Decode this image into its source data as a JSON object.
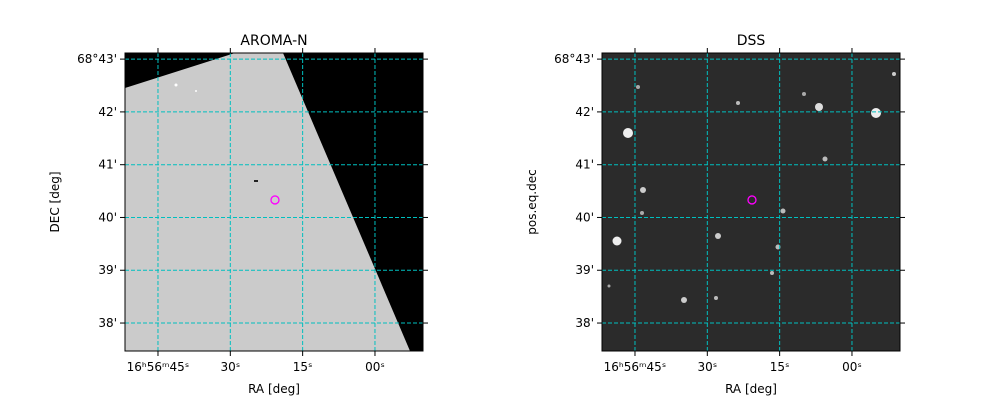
{
  "chart_data": [
    {
      "type": "image",
      "title": "AROMA-N",
      "xlabel": "RA [deg]",
      "ylabel": "DEC [deg]",
      "xlim": [
        254.216,
        253.9585
      ],
      "ylim": [
        68.6245,
        68.7186
      ],
      "xticks": [
        {
          "value": 254.1875,
          "label": "16ʰ56ᵐ45ˢ"
        },
        {
          "value": 254.125,
          "label": "30ˢ"
        },
        {
          "value": 254.0625,
          "label": "15ˢ"
        },
        {
          "value": 254.0,
          "label": "00ˢ"
        }
      ],
      "yticks": [
        {
          "value": 68.71667,
          "label": "68°43'"
        },
        {
          "value": 68.7,
          "label": "42'"
        },
        {
          "value": 68.68333,
          "label": "41'"
        },
        {
          "value": 68.66667,
          "label": "40'"
        },
        {
          "value": 68.65,
          "label": "39'"
        },
        {
          "value": 68.63333,
          "label": "38'"
        }
      ],
      "grid": true,
      "grid_color": "#00bfbf",
      "marker": {
        "x": 254.0864,
        "y": 68.6722,
        "color": "#ff00ff"
      }
    },
    {
      "type": "image",
      "title": "DSS",
      "xlabel": "RA [deg]",
      "ylabel": "pos.eq.dec",
      "xlim": [
        254.216,
        253.9585
      ],
      "ylim": [
        68.6245,
        68.7186
      ],
      "xticks": [
        {
          "value": 254.1875,
          "label": "16ʰ56ᵐ45ˢ"
        },
        {
          "value": 254.125,
          "label": "30ˢ"
        },
        {
          "value": 254.0625,
          "label": "15ˢ"
        },
        {
          "value": 254.0,
          "label": "00ˢ"
        }
      ],
      "yticks": [
        {
          "value": 68.71667,
          "label": "68°43'"
        },
        {
          "value": 68.7,
          "label": "42'"
        },
        {
          "value": 68.68333,
          "label": "41'"
        },
        {
          "value": 68.66667,
          "label": "40'"
        },
        {
          "value": 68.65,
          "label": "39'"
        },
        {
          "value": 68.63333,
          "label": "38'"
        }
      ],
      "grid": true,
      "grid_color": "#00bfbf",
      "marker": {
        "x": 254.0864,
        "y": 68.6722,
        "color": "#ff00ff"
      }
    }
  ]
}
